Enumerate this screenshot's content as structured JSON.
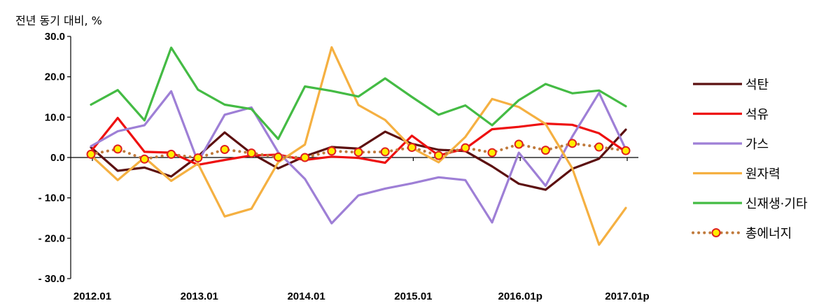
{
  "chart_data": {
    "type": "line",
    "ylabel": "전년 동기 대비, %",
    "ylim": [
      -30,
      30
    ],
    "y_ticks": [
      30,
      20,
      10,
      0,
      -10,
      -20,
      -30
    ],
    "y_tick_labels": [
      "30.0",
      "20.0",
      "10.0",
      "0.0",
      "- 10.0",
      "- 20.0",
      "- 30.0"
    ],
    "x": [
      0,
      1,
      2,
      3,
      4,
      5,
      6,
      7,
      8,
      9,
      10,
      11,
      12,
      13,
      14,
      15,
      16,
      17,
      18,
      19,
      20
    ],
    "x_tick_positions": [
      0,
      4,
      8,
      12,
      16,
      20
    ],
    "x_tick_labels": [
      "2012.01",
      "2013.01",
      "2014.01",
      "2015.01",
      "2016.01p",
      "2017.01p"
    ],
    "grid": false,
    "legend_position": "right",
    "series": [
      {
        "name": "석탄",
        "color": "#5c1010",
        "style": "solid",
        "values": [
          2.5,
          -3.3,
          -2.5,
          -4.7,
          0.3,
          6.2,
          1.0,
          -2.7,
          0.3,
          2.6,
          2.2,
          6.4,
          3.4,
          1.9,
          1.6,
          -2.2,
          -6.5,
          -8.0,
          -2.8,
          -0.3,
          6.9
        ]
      },
      {
        "name": "석유",
        "color": "#ee1010",
        "style": "solid",
        "values": [
          1.5,
          9.8,
          1.4,
          1.2,
          -1.8,
          -0.6,
          0.5,
          0.7,
          -0.6,
          0.2,
          -0.1,
          -1.3,
          5.4,
          0.5,
          2.2,
          7.0,
          7.6,
          8.4,
          8.1,
          6.0,
          1.4
        ]
      },
      {
        "name": "가스",
        "color": "#9e7fd6",
        "style": "solid",
        "values": [
          2.8,
          6.5,
          8.0,
          16.4,
          -1.1,
          10.6,
          12.4,
          1.3,
          -5.3,
          -16.3,
          -9.4,
          -7.7,
          -6.4,
          -4.9,
          -5.6,
          -16.1,
          1.2,
          -7.0,
          5.2,
          16.0,
          2.0
        ]
      },
      {
        "name": "원자력",
        "color": "#f5b041",
        "style": "solid",
        "values": [
          0.5,
          -5.6,
          0.0,
          -5.8,
          -1.5,
          -14.6,
          -12.7,
          -1.2,
          3.2,
          27.3,
          13.0,
          9.3,
          2.4,
          -1.2,
          5.1,
          14.5,
          12.5,
          8.3,
          -2.7,
          -21.6,
          -12.5
        ]
      },
      {
        "name": "신재생·기타",
        "color": "#44bb44",
        "style": "solid",
        "values": [
          13.1,
          16.7,
          9.2,
          27.2,
          16.8,
          13.1,
          12.0,
          4.6,
          17.6,
          16.5,
          15.1,
          19.6,
          15.0,
          10.6,
          12.9,
          8.0,
          14.2,
          18.2,
          15.9,
          16.6,
          12.7
        ]
      },
      {
        "name": "총에너지",
        "color": "#c07a3c",
        "marker_fill": "#ffee00",
        "marker_stroke": "#e02020",
        "style": "dotted",
        "values": [
          0.8,
          2.1,
          -0.4,
          0.8,
          -0.1,
          2.0,
          1.1,
          0.1,
          0.0,
          1.6,
          1.3,
          1.4,
          2.5,
          0.5,
          2.4,
          1.2,
          3.3,
          1.8,
          3.5,
          2.6,
          1.7
        ]
      }
    ]
  }
}
